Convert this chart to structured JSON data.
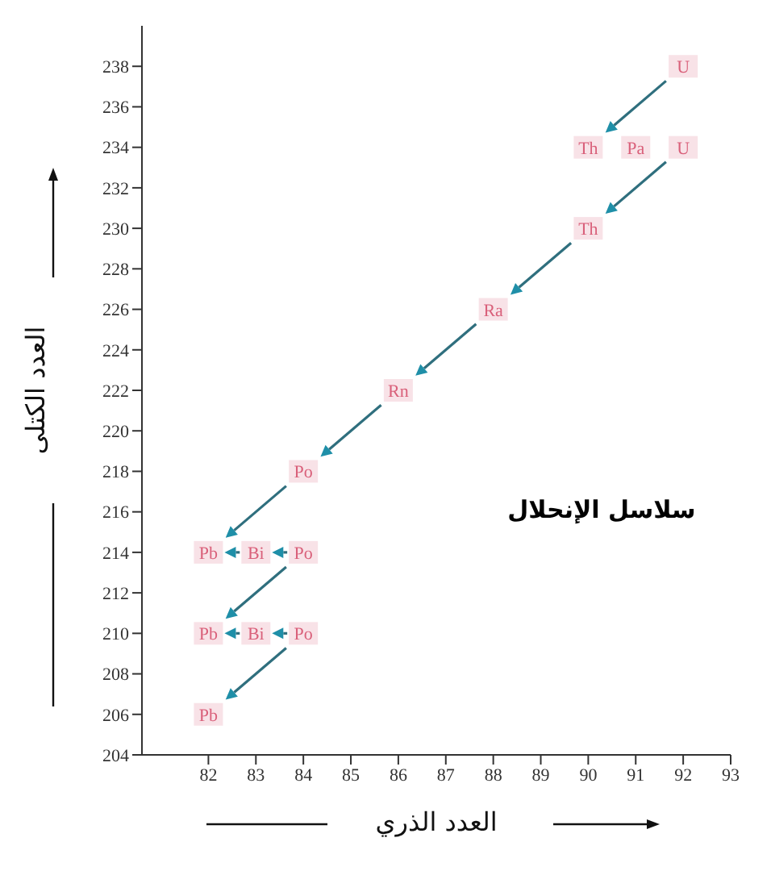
{
  "chart_data": {
    "type": "scatter",
    "xlabel": "العدد الذري",
    "ylabel": "العدد الكتلى",
    "annotations": [
      "سلاسل الإنحلال"
    ],
    "series": [
      {
        "color": "#d9607a",
        "x": [
          92,
          90,
          91,
          92,
          90,
          88,
          86,
          84,
          82,
          83,
          84,
          82,
          83,
          84,
          82
        ],
        "values": [
          238,
          234,
          234,
          234,
          230,
          226,
          222,
          218,
          214,
          214,
          214,
          210,
          210,
          210,
          206
        ],
        "value_labels": [
          "U",
          "Th",
          "Pa",
          "U",
          "Th",
          "Ra",
          "Rn",
          "Po",
          "Pb",
          "Bi",
          "Po",
          "Pb",
          "Bi",
          "Po",
          "Pb"
        ]
      }
    ],
    "marker": "square",
    "xlim": [
      80.6,
      93
    ],
    "xticks": [
      82,
      83,
      84,
      85,
      86,
      87,
      88,
      89,
      90,
      91,
      92,
      93
    ],
    "ylim": [
      204,
      240
    ],
    "yticks": [
      204,
      206,
      208,
      210,
      212,
      214,
      216,
      218,
      220,
      222,
      224,
      226,
      228,
      230,
      232,
      234,
      236,
      238
    ]
  }
}
